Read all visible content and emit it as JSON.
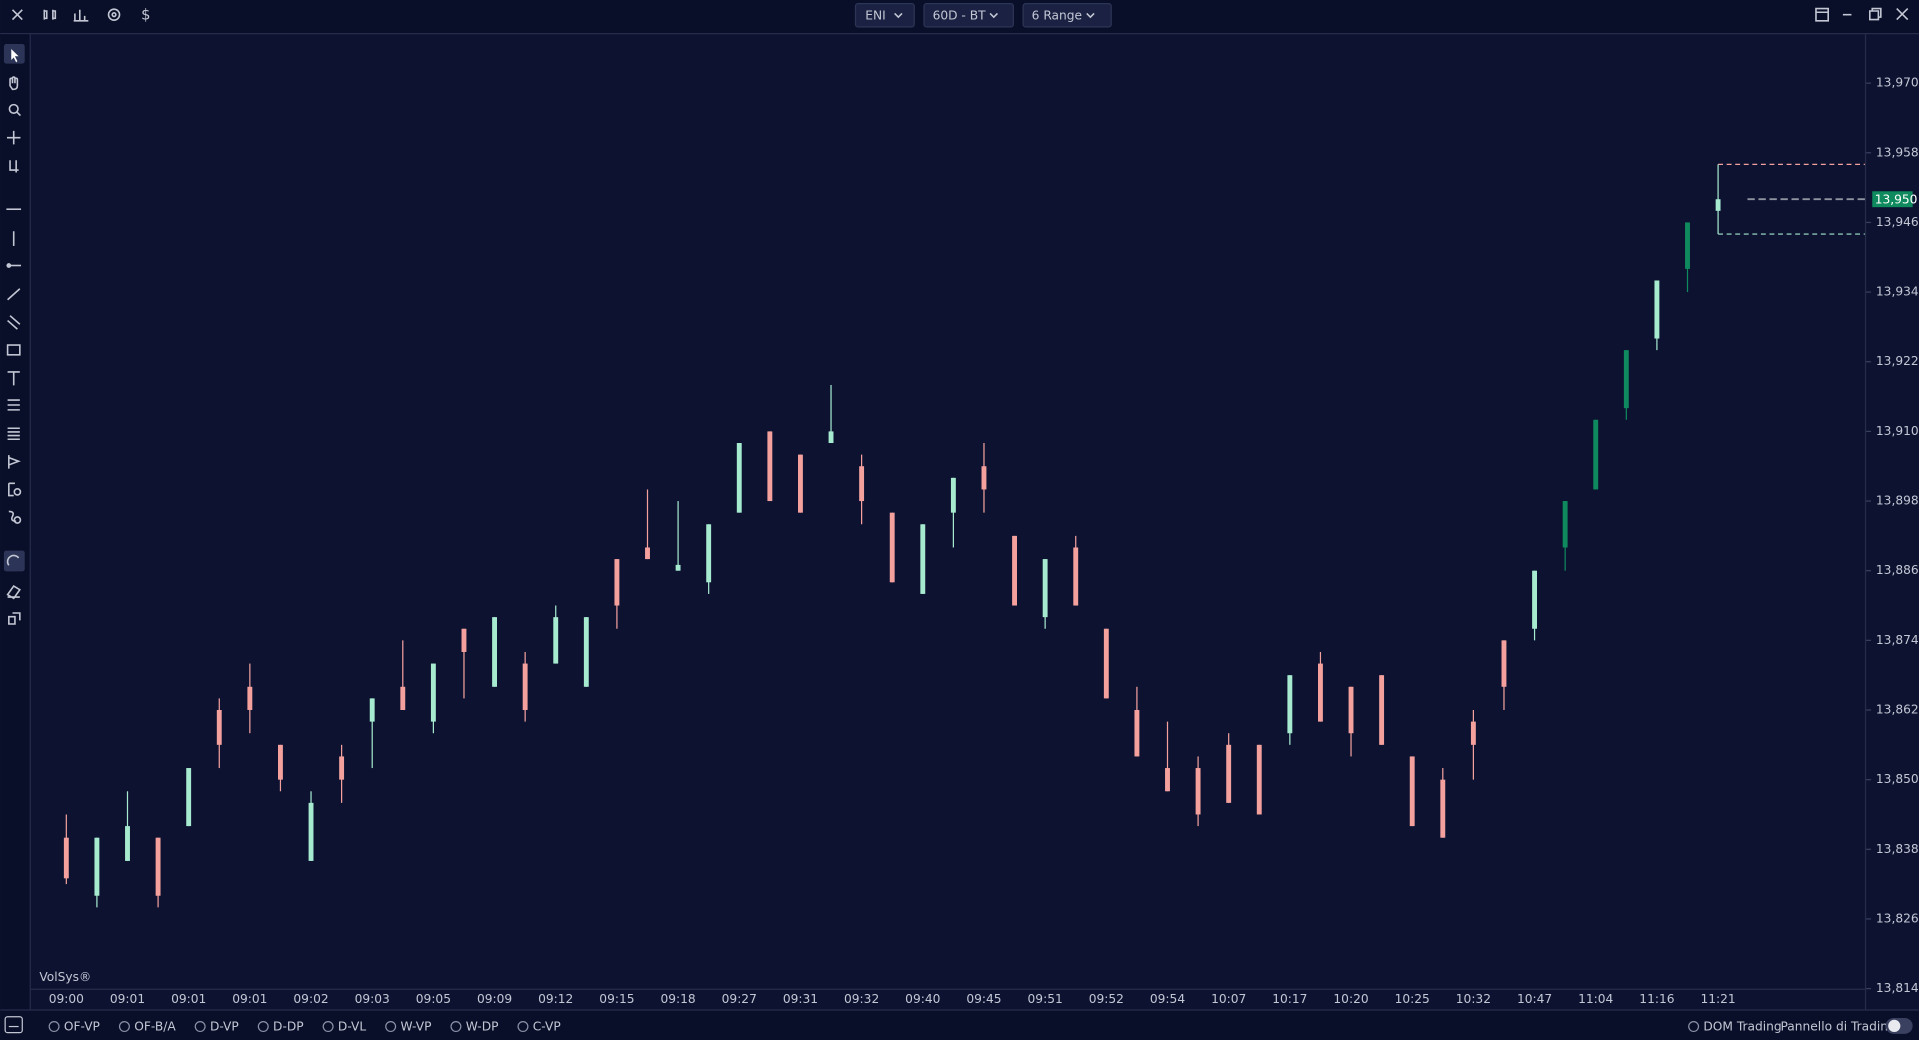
{
  "toolbar": {
    "symbol": "ENI",
    "timeframe": "60D - BT",
    "bar_type": "6 Range"
  },
  "watermark": "VolSys®",
  "indicators": [
    "OF-VP",
    "OF-B/A",
    "D-VP",
    "D-DP",
    "D-VL",
    "W-VP",
    "W-DP",
    "C-VP"
  ],
  "footer": {
    "dom": "DOM Trading",
    "panel": "Pannello di Trading"
  },
  "chart_data": {
    "type": "candlestick",
    "categories": [
      "09:00",
      null,
      "09:01",
      null,
      "09:01",
      null,
      "09:01",
      null,
      "09:02",
      null,
      "09:03",
      null,
      "09:05",
      null,
      "09:09",
      null,
      "09:12",
      null,
      "09:15",
      null,
      "09:18",
      null,
      "09:27",
      null,
      "09:31",
      null,
      "09:32",
      null,
      "09:40",
      null,
      "09:45",
      null,
      "09:51",
      null,
      "09:52",
      null,
      "09:54",
      null,
      "10:07",
      null,
      "10:17",
      null,
      "10:20",
      null,
      "10:25",
      null,
      "10:32",
      null,
      "10:47",
      null,
      "11:04",
      null,
      "11:16",
      null,
      "11:21"
    ],
    "open": [
      13840,
      13830,
      13836,
      13840,
      13842,
      13862,
      13866,
      13856,
      13836,
      13854,
      13860,
      13866,
      13860,
      13876,
      13866,
      13870,
      13870,
      13866,
      13888,
      13890,
      13886,
      13884,
      13896,
      13910,
      13906,
      13908,
      13904,
      13896,
      13882,
      13896,
      13904,
      13892,
      13878,
      13890,
      13876,
      13862,
      13852,
      13852,
      13856,
      13856,
      13858,
      13870,
      13866,
      13868,
      13854,
      13850,
      13860,
      13874,
      13876,
      13890,
      13900,
      13914,
      13926,
      13938,
      13948
    ],
    "high": [
      13844,
      13840,
      13848,
      13840,
      13852,
      13864,
      13870,
      13856,
      13848,
      13856,
      13864,
      13874,
      13870,
      13876,
      13878,
      13872,
      13880,
      13878,
      13888,
      13900,
      13898,
      13894,
      13908,
      13910,
      13906,
      13918,
      13906,
      13896,
      13894,
      13902,
      13908,
      13892,
      13888,
      13892,
      13876,
      13866,
      13860,
      13854,
      13858,
      13856,
      13868,
      13872,
      13866,
      13868,
      13854,
      13852,
      13862,
      13874,
      13886,
      13898,
      13912,
      13924,
      13936,
      13946,
      13956
    ],
    "low": [
      13832,
      13828,
      13836,
      13828,
      13842,
      13852,
      13858,
      13848,
      13836,
      13846,
      13852,
      13862,
      13858,
      13864,
      13866,
      13860,
      13870,
      13866,
      13876,
      13888,
      13886,
      13882,
      13896,
      13898,
      13896,
      13908,
      13894,
      13884,
      13882,
      13890,
      13896,
      13880,
      13876,
      13880,
      13864,
      13854,
      13848,
      13842,
      13846,
      13844,
      13856,
      13860,
      13854,
      13856,
      13842,
      13840,
      13850,
      13862,
      13874,
      13886,
      13900,
      13912,
      13924,
      13934,
      13944
    ],
    "close": [
      13833,
      13840,
      13842,
      13830,
      13852,
      13856,
      13862,
      13850,
      13846,
      13850,
      13864,
      13862,
      13870,
      13872,
      13878,
      13862,
      13878,
      13878,
      13880,
      13888,
      13887,
      13894,
      13908,
      13898,
      13896,
      13910,
      13898,
      13884,
      13894,
      13902,
      13900,
      13880,
      13888,
      13880,
      13864,
      13854,
      13848,
      13844,
      13846,
      13844,
      13868,
      13860,
      13858,
      13856,
      13842,
      13840,
      13856,
      13866,
      13886,
      13898,
      13912,
      13924,
      13936,
      13946,
      13950
    ],
    "colors": [
      "#f4a19e",
      "#a6ead0",
      "#a6ead0",
      "#f4a19e",
      "#a6ead0",
      "#f4a19e",
      "#f4a19e",
      "#f4a19e",
      "#a6ead0",
      "#f4a19e",
      "#a6ead0",
      "#f4a19e",
      "#a6ead0",
      "#f4a19e",
      "#a6ead0",
      "#f4a19e",
      "#a6ead0",
      "#a6ead0",
      "#f4a19e",
      "#f4a19e",
      "#a6ead0",
      "#a6ead0",
      "#a6ead0",
      "#f4a19e",
      "#f4a19e",
      "#a6ead0",
      "#f4a19e",
      "#f4a19e",
      "#a6ead0",
      "#a6ead0",
      "#f4a19e",
      "#f4a19e",
      "#a6ead0",
      "#f4a19e",
      "#f4a19e",
      "#f4a19e",
      "#f4a19e",
      "#f4a19e",
      "#f4a19e",
      "#f4a19e",
      "#a6ead0",
      "#f4a19e",
      "#f4a19e",
      "#f4a19e",
      "#f4a19e",
      "#f4a19e",
      "#f4a19e",
      "#f4a19e",
      "#a6ead0",
      "#0f8a5e",
      "#0f8a5e",
      "#0f8a5e",
      "#a6ead0",
      "#0f8a5e",
      "#a6ead0"
    ],
    "ylim": [
      13814,
      13978
    ],
    "yticks": [
      {
        "value": 13814,
        "label": "13,814"
      },
      {
        "value": 13826,
        "label": "13,826"
      },
      {
        "value": 13838,
        "label": "13,838"
      },
      {
        "value": 13850,
        "label": "13,850"
      },
      {
        "value": 13862,
        "label": "13,862"
      },
      {
        "value": 13874,
        "label": "13,874"
      },
      {
        "value": 13886,
        "label": "13,886"
      },
      {
        "value": 13898,
        "label": "13,898"
      },
      {
        "value": 13910,
        "label": "13,910"
      },
      {
        "value": 13922,
        "label": "13,922"
      },
      {
        "value": 13934,
        "label": "13,934"
      },
      {
        "value": 13946,
        "label": "13,946"
      },
      {
        "value": 13958,
        "label": "13,958"
      },
      {
        "value": 13970,
        "label": "13,970"
      }
    ],
    "last_price": {
      "value": 13950,
      "label": "13,950",
      "color": "#0f8a5e"
    },
    "levels": [
      {
        "value": 13956,
        "color": "#f4a19e"
      },
      {
        "value": 13944,
        "color": "#a6ead0"
      }
    ]
  }
}
